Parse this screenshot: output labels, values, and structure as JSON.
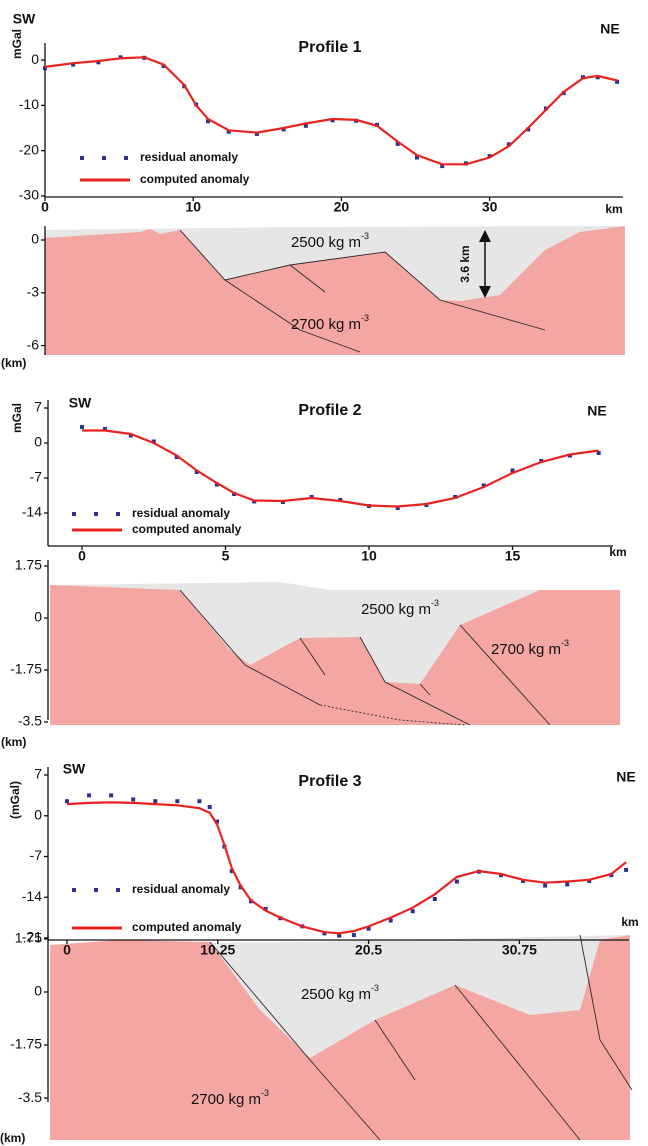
{
  "chart_data": [
    {
      "type": "line",
      "title": "Profile 1",
      "left_label": "SW",
      "right_label": "NE",
      "ylabel": "mGal",
      "xlabel": "km",
      "x": [
        0,
        1.9,
        3.6,
        5.1,
        6.7,
        8,
        9.4,
        10.2,
        11,
        12.4,
        14.3,
        16.1,
        17.6,
        19.4,
        21,
        22.4,
        23.8,
        25.1,
        26.8,
        28.4,
        30,
        31.3,
        32.6,
        33.8,
        35,
        36.3,
        37.3,
        38.6
      ],
      "series": [
        {
          "name": "residual anomaly",
          "color": "#2e3192",
          "marker": "square",
          "values": [
            -1.8,
            -1,
            -0.5,
            0.6,
            0.5,
            -1.3,
            -5.8,
            -9.8,
            -13.5,
            -15.8,
            -16.3,
            -15.3,
            -14.5,
            -13.3,
            -13.4,
            -14.3,
            -18.5,
            -21.5,
            -23.4,
            -22.8,
            -21.2,
            -18.6,
            -15.3,
            -10.7,
            -7.3,
            -3.8,
            -3.8,
            -4.8
          ]
        },
        {
          "name": "computed anomaly",
          "color": "#e8231f",
          "marker": "line",
          "values": [
            -1.5,
            -0.7,
            -0.2,
            0.4,
            0.6,
            -1,
            -5.5,
            -10,
            -13,
            -15.5,
            -16,
            -15,
            -14,
            -13,
            -13.2,
            -14.5,
            -18,
            -21,
            -23,
            -23,
            -21.5,
            -19,
            -15,
            -11,
            -7,
            -4,
            -3.5,
            -4.5
          ]
        }
      ],
      "xlim": [
        0,
        39
      ],
      "ylim": [
        -30,
        2
      ],
      "xticks": [
        0,
        10,
        20,
        30
      ],
      "yticks": [
        0,
        -10,
        -20,
        -30
      ]
    },
    {
      "type": "line",
      "title": "Profile 2",
      "left_label": "SW",
      "right_label": "NE",
      "ylabel": "mGal",
      "xlabel": "km",
      "x": [
        0,
        0.8,
        1.7,
        2.5,
        3.3,
        4,
        4.7,
        5.3,
        6,
        7,
        8,
        9,
        10,
        11,
        12,
        13,
        14,
        15,
        16,
        17,
        18
      ],
      "series": [
        {
          "name": "residual anomaly",
          "color": "#2e3192",
          "marker": "square",
          "values": [
            3.2,
            2.8,
            1.5,
            0.3,
            -2.8,
            -5.8,
            -8.3,
            -10.2,
            -11.7,
            -11.8,
            -10.8,
            -11.4,
            -12.6,
            -13,
            -12.4,
            -10.8,
            -8.5,
            -5.5,
            -3.6,
            -2.5,
            -2
          ]
        },
        {
          "name": "computed anomaly",
          "color": "#e8231f",
          "marker": "line",
          "values": [
            2.5,
            2.5,
            1.8,
            0,
            -2.5,
            -5.5,
            -8,
            -10,
            -11.5,
            -11.6,
            -11,
            -11.6,
            -12.5,
            -12.7,
            -12.2,
            -11,
            -8.8,
            -6,
            -3.8,
            -2.3,
            -1.5
          ]
        }
      ],
      "xlim": [
        0,
        18.5
      ],
      "ylim": [
        -20,
        7
      ],
      "xticks": [
        0,
        5,
        10,
        15
      ],
      "yticks": [
        7,
        0,
        -7,
        -14
      ]
    },
    {
      "type": "line",
      "title": "Profile 3",
      "left_label": "SW",
      "right_label": "NE",
      "ylabel": "(mGal)",
      "xlabel": "km",
      "x": [
        0,
        1.5,
        3,
        4.5,
        6,
        7.5,
        9,
        9.7,
        10.2,
        10.7,
        11.2,
        11.8,
        12.5,
        13.5,
        14.5,
        16,
        17.5,
        18.5,
        19.5,
        20.5,
        22,
        23.5,
        25,
        26.5,
        28,
        29.5,
        31,
        32.5,
        34,
        35.5,
        37,
        38
      ],
      "series": [
        {
          "name": "residual anomaly",
          "color": "#2e3192",
          "marker": "square",
          "values": [
            2.5,
            3.5,
            3.5,
            2.8,
            2.5,
            2.5,
            2.5,
            1.5,
            -1,
            -5.3,
            -9.5,
            -12.3,
            -14.7,
            -16,
            -17.6,
            -19,
            -20.2,
            -20.6,
            -20.5,
            -19.4,
            -18,
            -16.4,
            -14.3,
            -11.3,
            -9.6,
            -10.2,
            -11.2,
            -12,
            -11.8,
            -11.2,
            -10.2,
            -9.3
          ]
        },
        {
          "name": "computed anomaly",
          "color": "#e8231f",
          "marker": "line",
          "values": [
            2,
            2.2,
            2.3,
            2.2,
            2,
            1.8,
            1.3,
            0.5,
            -1.5,
            -5,
            -9,
            -12,
            -14.5,
            -16.3,
            -17.5,
            -19,
            -20,
            -20.2,
            -19.8,
            -19,
            -17.5,
            -15.8,
            -13.5,
            -10.5,
            -9.5,
            -10,
            -11,
            -11.5,
            -11.3,
            -11,
            -10,
            -8
          ]
        }
      ],
      "xlim": [
        0,
        38.2
      ],
      "ylim": [
        -21,
        7
      ],
      "xticks": [
        0,
        10.25,
        20.5,
        30.75
      ],
      "yticks": [
        7,
        0,
        -7,
        -14,
        -21
      ]
    }
  ],
  "sections": [
    {
      "depth_ticks": [
        0,
        -3,
        -6
      ],
      "unit": "(km)",
      "labels": [
        {
          "text": "2500 kg m",
          "sup": "-3"
        },
        {
          "text": "2700 kg m",
          "sup": "-3"
        }
      ],
      "annotation": "3.6 km"
    },
    {
      "depth_ticks": [
        1.75,
        0,
        -1.75,
        -3.5
      ],
      "unit": "(km)",
      "labels": [
        {
          "text": "2500 kg m",
          "sup": "-3"
        },
        {
          "text": "2700 kg m",
          "sup": "-3"
        }
      ]
    },
    {
      "depth_ticks": [
        1.75,
        0,
        -1.75,
        -3.5
      ],
      "unit": "(km)",
      "labels": [
        {
          "text": "2500 kg m",
          "sup": "-3"
        },
        {
          "text": "2700 kg m",
          "sup": "-3"
        }
      ]
    }
  ]
}
